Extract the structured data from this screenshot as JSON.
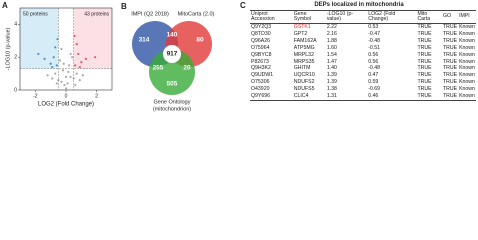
{
  "chart_data": {
    "type": "scatter",
    "label": "A",
    "xlabel": "LOG2 (Fold Change)",
    "ylabel": "-LOG10 (p-value)",
    "annotations": [
      "50 proteins",
      "43 proteins"
    ],
    "xlim": [
      -3,
      3
    ],
    "ylim": [
      0,
      5
    ],
    "xticks": [
      -2,
      0,
      2
    ],
    "yticks": [
      0,
      2,
      4
    ],
    "x_thresholds": [
      -0.5,
      0.5
    ],
    "y_threshold": 1.3,
    "region_colors": [
      "#d6ecf7",
      "#fbe0e6"
    ],
    "series": [
      {
        "color": "#9a9a9a",
        "x": [
          -1.2,
          -0.9,
          -0.7,
          -0.5,
          -0.4,
          -0.3,
          -0.2,
          -0.1,
          0,
          0.1,
          0.2,
          0.3,
          0.4,
          0.5,
          0.7,
          0.9,
          1.1,
          -0.6,
          0.6,
          -0.3,
          0.3,
          0,
          -0.15,
          0.15
        ],
        "values": [
          0.9,
          0.7,
          1.0,
          0.6,
          1.8,
          0.5,
          1.2,
          0.3,
          0.1,
          0.4,
          1.5,
          0.8,
          2.0,
          0.7,
          1.0,
          0.6,
          0.9,
          0.4,
          0.3,
          2.5,
          2.2,
          0.8,
          1.6,
          1.1
        ]
      },
      {
        "color": "#3a7fc0",
        "x": [
          -0.6,
          -0.8,
          -1.0,
          -0.7,
          -1.4,
          -0.55,
          -0.9,
          -1.8
        ],
        "values": [
          1.5,
          2.0,
          1.6,
          2.6,
          1.9,
          3.1,
          1.4,
          2.2
        ]
      },
      {
        "color": "#e0405a",
        "x": [
          0.6,
          0.8,
          1.0,
          0.7,
          1.3,
          0.55,
          0.9,
          1.9
        ],
        "values": [
          1.5,
          2.2,
          1.7,
          2.8,
          1.9,
          3.3,
          1.4,
          2.0
        ]
      }
    ]
  },
  "venn": {
    "label": "B",
    "sets": [
      {
        "name": "IMPI (Q2 2018)",
        "color": "#2f55a4"
      },
      {
        "name": "MitoCarta (2.0)",
        "color": "#e23a3a"
      },
      {
        "name": [
          "Gene Ontology",
          "(mitochondrion)"
        ],
        "color": "#3aaa3a"
      }
    ],
    "counts": {
      "impi_only": 314,
      "impi_mito": 140,
      "mito_only": 80,
      "all": 917,
      "impi_go": 255,
      "mito_go": 20,
      "go_only": 505
    }
  },
  "table": {
    "label": "C",
    "title": "DEPs localized in mitochondria",
    "headers": [
      "Uniprot Accession",
      "Gene Symbol",
      "-LOG10 (p-value)",
      "LOG2 (Fold Change)",
      "Mito Carta",
      "GO",
      "IMPI"
    ],
    "highlight_cell": [
      0,
      1
    ],
    "highlight_color": "#e03030",
    "rows": [
      [
        "Q9Y2Q3",
        "GSTK1",
        "2.22",
        "0.53",
        "TRUE",
        "TRUE",
        "Known"
      ],
      [
        "Q8TD30",
        "GPT2",
        "2.16",
        "-0.47",
        "TRUE",
        "TRUE",
        "Known"
      ],
      [
        "Q96A26",
        "FAM162A",
        "1.88",
        "-0.48",
        "TRUE",
        "TRUE",
        "Known"
      ],
      [
        "O75964",
        "ATP5MG",
        "1.60",
        "-0.51",
        "TRUE",
        "TRUE",
        "Known"
      ],
      [
        "Q9BYC8",
        "MRPL32",
        "1.54",
        "0.56",
        "TRUE",
        "TRUE",
        "Known"
      ],
      [
        "P82673",
        "MRPS35",
        "1.47",
        "0.56",
        "TRUE",
        "TRUE",
        "Known"
      ],
      [
        "Q9H3K2",
        "GHITM",
        "1.40",
        "-0.48",
        "TRUE",
        "TRUE",
        "Known"
      ],
      [
        "Q9UDW1",
        "UQCR10",
        "1.39",
        "0.47",
        "TRUE",
        "TRUE",
        "Known"
      ],
      [
        "O75306",
        "NDUFS2",
        "1.39",
        "0.59",
        "TRUE",
        "TRUE",
        "Known"
      ],
      [
        "O43920",
        "NDUFS5",
        "1.38",
        "-0.69",
        "TRUE",
        "TRUE",
        "Known"
      ],
      [
        "Q9Y696",
        "CLIC4",
        "1.31",
        "0.46",
        "TRUE",
        "TRUE",
        "Known"
      ]
    ]
  }
}
